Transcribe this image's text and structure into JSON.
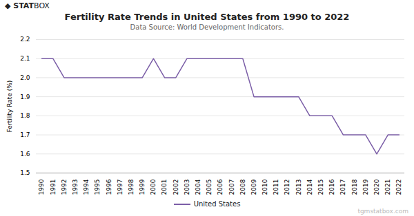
{
  "chart_data": {
    "type": "line",
    "title": "Fertility Rate Trends in United States from 1990 to 2022",
    "subtitle": "Data Source: World Development Indicators.",
    "ylabel": "Fertility Rate (%)",
    "annotations": [
      "◆",
      "STAT",
      "BOX",
      "tgmstatbox.com"
    ],
    "x": [
      1990,
      1991,
      1992,
      1993,
      1994,
      1995,
      1996,
      1997,
      1998,
      1999,
      2000,
      2001,
      2002,
      2003,
      2004,
      2005,
      2006,
      2007,
      2008,
      2009,
      2010,
      2011,
      2012,
      2013,
      2014,
      2015,
      2016,
      2017,
      2018,
      2019,
      2020,
      2021,
      2022
    ],
    "series": [
      {
        "name": "United States",
        "color": "#7B5EA7",
        "values": [
          2.1,
          2.1,
          2.0,
          2.0,
          2.0,
          2.0,
          2.0,
          2.0,
          2.0,
          2.0,
          2.1,
          2.0,
          2.0,
          2.1,
          2.1,
          2.1,
          2.1,
          2.1,
          2.1,
          1.9,
          1.9,
          1.9,
          1.9,
          1.9,
          1.8,
          1.8,
          1.8,
          1.7,
          1.7,
          1.7,
          1.6,
          1.7,
          1.7
        ]
      }
    ],
    "xlim": [
      1989.5,
      2022.5
    ],
    "xticks": [
      1990,
      1991,
      1992,
      1993,
      1994,
      1995,
      1996,
      1997,
      1998,
      1999,
      2000,
      2001,
      2002,
      2003,
      2004,
      2005,
      2006,
      2007,
      2008,
      2009,
      2010,
      2011,
      2012,
      2013,
      2014,
      2015,
      2016,
      2017,
      2018,
      2019,
      2020,
      2021,
      2022
    ],
    "ylim": [
      1.5,
      2.2
    ],
    "yticks": [
      1.5,
      1.6,
      1.7,
      1.8,
      1.9,
      {
        "value": 2,
        "label": "2.0"
      },
      2.1,
      2.2
    ],
    "grid": true,
    "legend": "bottom"
  }
}
